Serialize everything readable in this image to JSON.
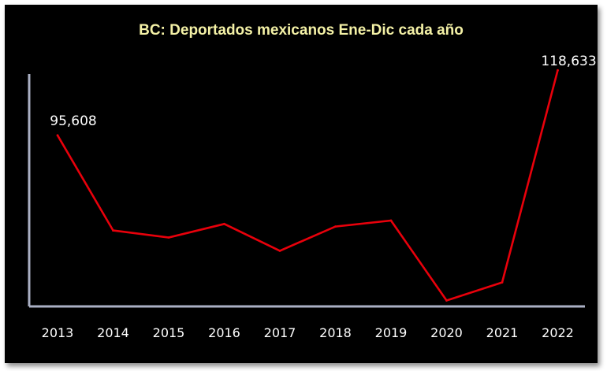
{
  "chart_data": {
    "type": "line",
    "title": "BC: Deportados mexicanos Ene-Dic cada año",
    "xlabel": "",
    "ylabel": "",
    "categories": [
      "2013",
      "2014",
      "2015",
      "2016",
      "2017",
      "2018",
      "2019",
      "2020",
      "2021",
      "2022"
    ],
    "series": [
      {
        "values": [
          95608,
          61900,
          59400,
          64200,
          54700,
          63300,
          65400,
          37100,
          43500,
          118633
        ],
        "color": "#e8000b"
      }
    ],
    "data_labels": [
      {
        "index": 0,
        "text": "95,608"
      },
      {
        "index": 9,
        "text": "118,633"
      }
    ],
    "ylim": [
      35000,
      124000
    ],
    "grid": false,
    "legend": "none",
    "colors": {
      "background": "#000000",
      "title": "#f4f1a6",
      "axis": "#aab0c4",
      "line": "#e8000b",
      "text": "#ffffff"
    }
  }
}
